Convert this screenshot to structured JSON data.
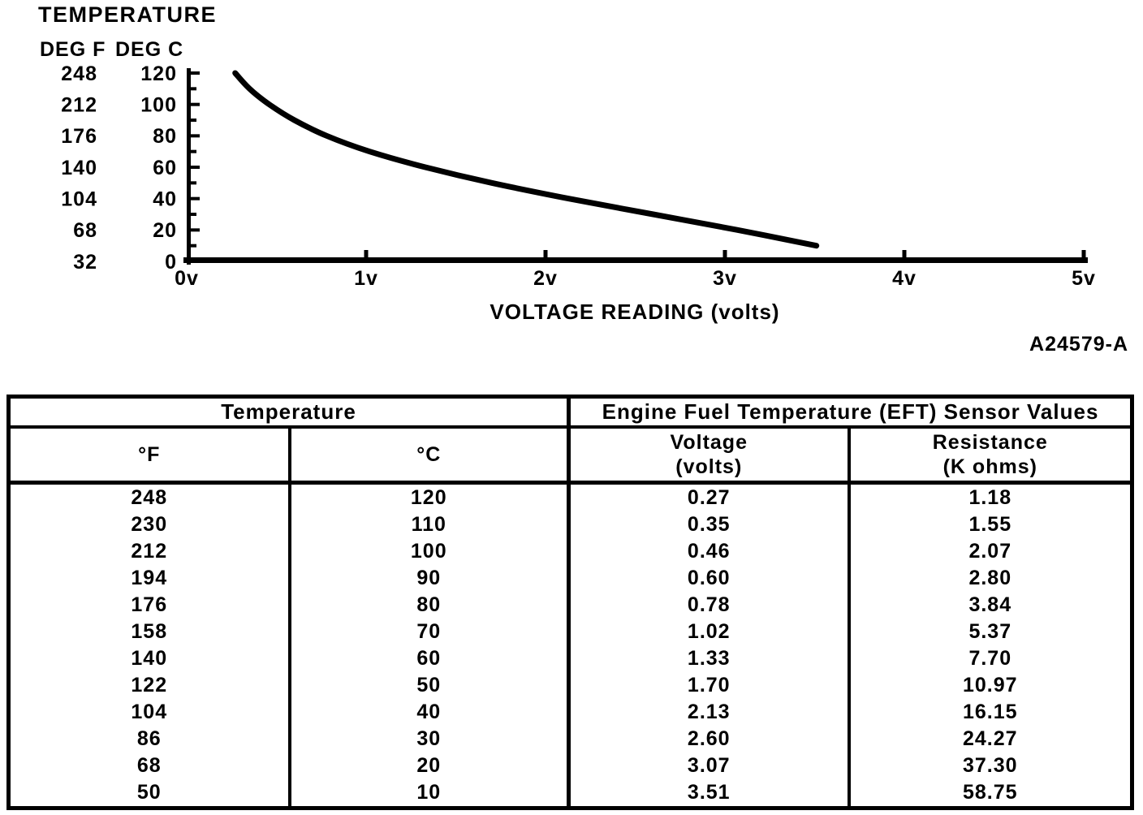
{
  "page": {
    "background": "#ffffff",
    "ink": "#000000"
  },
  "figure": {
    "title": "TEMPERATURE",
    "y_unit_f": "DEG F",
    "y_unit_c": "DEG C",
    "x_axis_label": "VOLTAGE READING (volts)",
    "figure_code": "A24579-A"
  },
  "chart_data": {
    "type": "line",
    "title": "TEMPERATURE",
    "xlabel": "VOLTAGE READING (volts)",
    "ylabel": "TEMPERATURE (DEG F / DEG C)",
    "xlim": [
      0,
      5
    ],
    "ylim": [
      0,
      120
    ],
    "grid": false,
    "legend": false,
    "x_ticks": [
      {
        "x": 0,
        "label": "0v"
      },
      {
        "x": 1,
        "label": "1v"
      },
      {
        "x": 2,
        "label": "2v"
      },
      {
        "x": 3,
        "label": "3v"
      },
      {
        "x": 4,
        "label": "4v"
      },
      {
        "x": 5,
        "label": "5v"
      }
    ],
    "y_ticks": [
      {
        "deg_c": 0,
        "label_c": "0",
        "label_f": "32"
      },
      {
        "deg_c": 20,
        "label_c": "20",
        "label_f": "68"
      },
      {
        "deg_c": 40,
        "label_c": "40",
        "label_f": "104"
      },
      {
        "deg_c": 60,
        "label_c": "60",
        "label_f": "140"
      },
      {
        "deg_c": 80,
        "label_c": "80",
        "label_f": "176"
      },
      {
        "deg_c": 100,
        "label_c": "100",
        "label_f": "212"
      },
      {
        "deg_c": 120,
        "label_c": "120",
        "label_f": "248"
      }
    ],
    "y_minor_tick_step_deg_c": 10,
    "series": [
      {
        "name": "EFT sensor temperature (deg C) vs voltage reading (volts)",
        "points": [
          {
            "x": 0.27,
            "y": 120
          },
          {
            "x": 0.35,
            "y": 110
          },
          {
            "x": 0.46,
            "y": 100
          },
          {
            "x": 0.6,
            "y": 90
          },
          {
            "x": 0.78,
            "y": 80
          },
          {
            "x": 1.02,
            "y": 70
          },
          {
            "x": 1.33,
            "y": 60
          },
          {
            "x": 1.7,
            "y": 50
          },
          {
            "x": 2.13,
            "y": 40
          },
          {
            "x": 2.6,
            "y": 30
          },
          {
            "x": 3.07,
            "y": 20
          },
          {
            "x": 3.51,
            "y": 10
          }
        ]
      }
    ]
  },
  "table": {
    "group_headers": [
      {
        "label": "Temperature"
      },
      {
        "label": "Engine Fuel Temperature (EFT) Sensor Values"
      }
    ],
    "columns": [
      {
        "label": "°F"
      },
      {
        "label": "°C"
      },
      {
        "label": "Voltage\n(volts)"
      },
      {
        "label": "Resistance\n(K ohms)"
      }
    ],
    "rows": [
      [
        "248",
        "120",
        "0.27",
        "1.18"
      ],
      [
        "230",
        "110",
        "0.35",
        "1.55"
      ],
      [
        "212",
        "100",
        "0.46",
        "2.07"
      ],
      [
        "194",
        "90",
        "0.60",
        "2.80"
      ],
      [
        "176",
        "80",
        "0.78",
        "3.84"
      ],
      [
        "158",
        "70",
        "1.02",
        "5.37"
      ],
      [
        "140",
        "60",
        "1.33",
        "7.70"
      ],
      [
        "122",
        "50",
        "1.70",
        "10.97"
      ],
      [
        "104",
        "40",
        "2.13",
        "16.15"
      ],
      [
        "86",
        "30",
        "2.60",
        "24.27"
      ],
      [
        "68",
        "20",
        "3.07",
        "37.30"
      ],
      [
        "50",
        "10",
        "3.51",
        "58.75"
      ]
    ]
  }
}
